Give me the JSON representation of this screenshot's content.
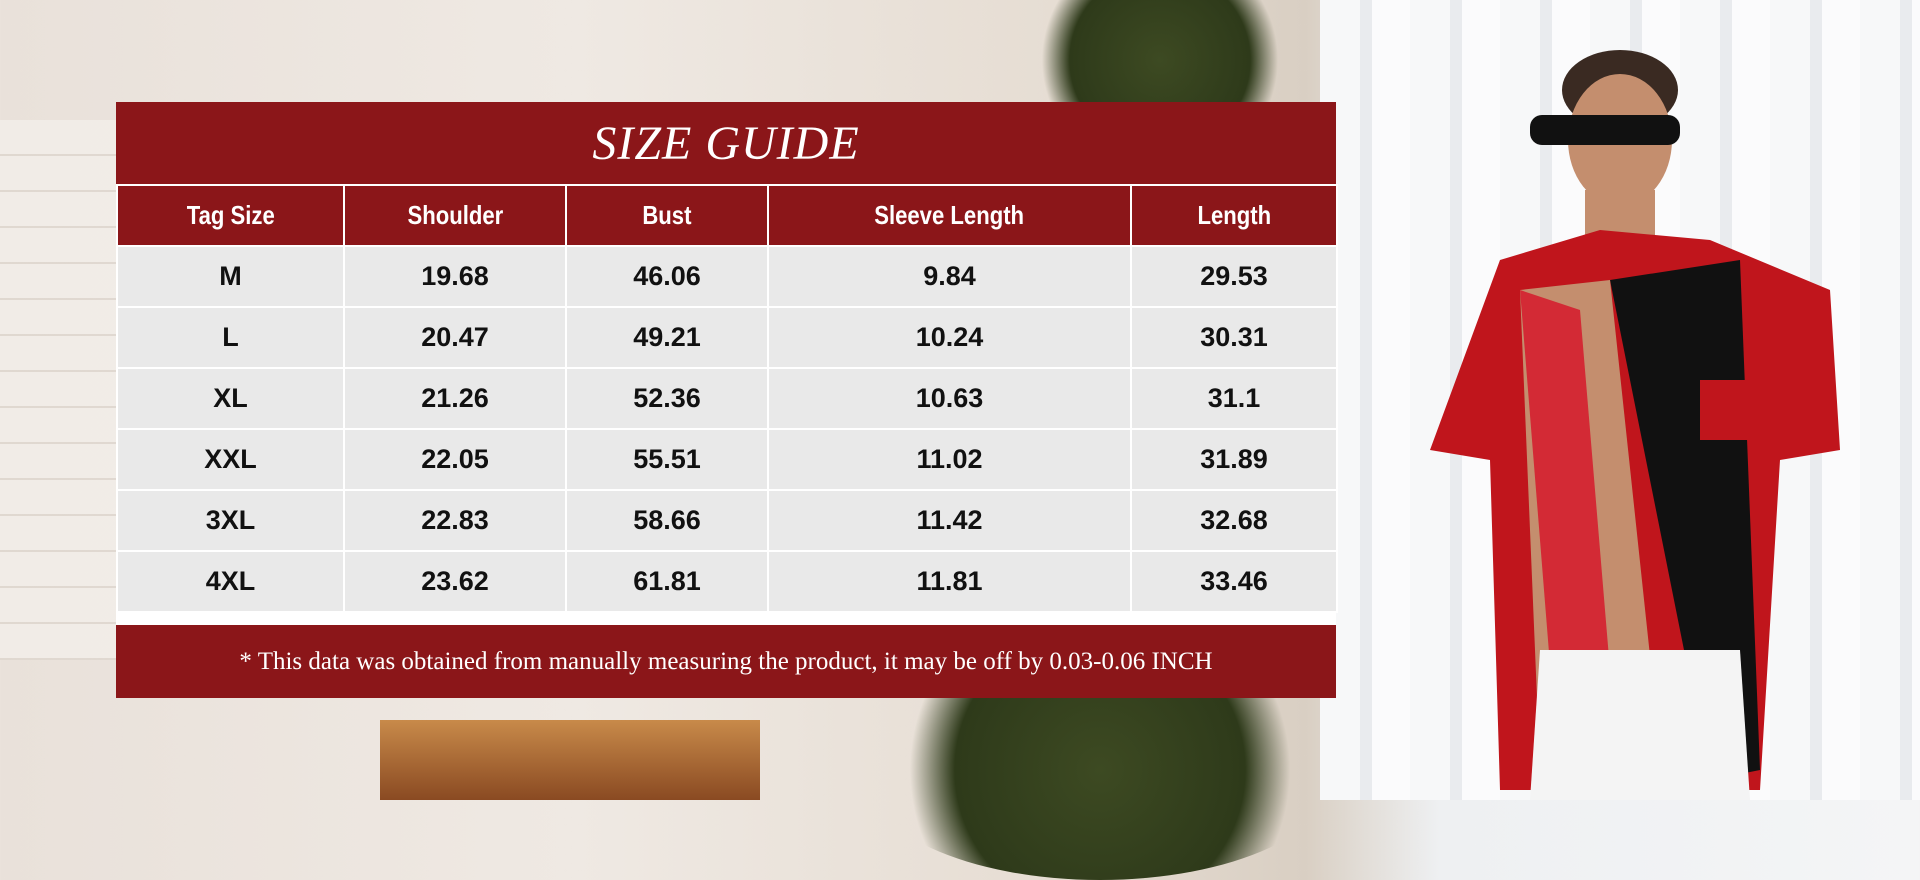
{
  "size_guide": {
    "title": "SIZE GUIDE",
    "columns": [
      "Tag Size",
      "Shoulder",
      "Bust",
      "Sleeve Length",
      "Length"
    ],
    "rows": [
      [
        "M",
        "19.68",
        "46.06",
        "9.84",
        "29.53"
      ],
      [
        "L",
        "20.47",
        "49.21",
        "10.24",
        "30.31"
      ],
      [
        "XL",
        "21.26",
        "52.36",
        "10.63",
        "31.1"
      ],
      [
        "XXL",
        "22.05",
        "55.51",
        "11.02",
        "31.89"
      ],
      [
        "3XL",
        "22.83",
        "58.66",
        "11.42",
        "32.68"
      ],
      [
        "4XL",
        "23.62",
        "61.81",
        "11.81",
        "33.46"
      ]
    ],
    "note": "* This data was obtained from manually measuring the product, it may be off by 0.03-0.06 INCH"
  },
  "colors": {
    "accent": "#8b1619",
    "cell": "#e9e9e9"
  }
}
